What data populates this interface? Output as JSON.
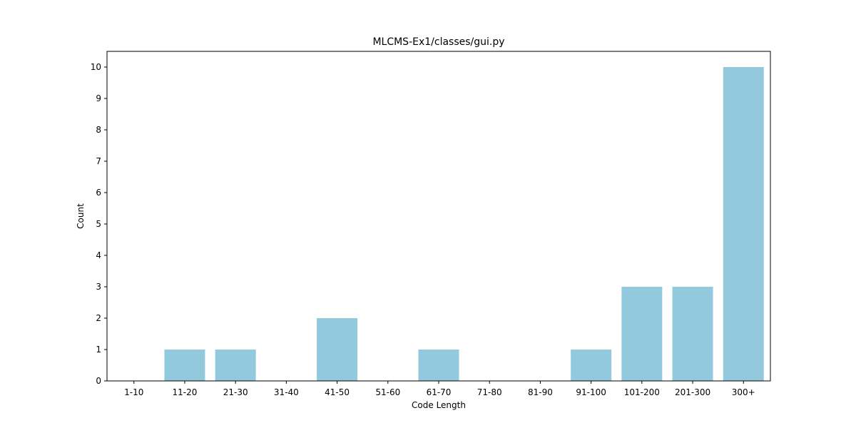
{
  "chart_data": {
    "type": "bar",
    "title": "MLCMS-Ex1/classes/gui.py",
    "xlabel": "Code Length",
    "ylabel": "Count",
    "categories": [
      "1-10",
      "11-20",
      "21-30",
      "31-40",
      "41-50",
      "51-60",
      "61-70",
      "71-80",
      "81-90",
      "91-100",
      "101-200",
      "201-300",
      "300+"
    ],
    "values": [
      0,
      1,
      1,
      0,
      2,
      0,
      1,
      0,
      0,
      1,
      3,
      3,
      10
    ],
    "ylim": [
      0,
      10.5
    ],
    "yticks": [
      0,
      1,
      2,
      3,
      4,
      5,
      6,
      7,
      8,
      9,
      10
    ],
    "bar_color": "#92c9dd",
    "grid": false,
    "legend": "none"
  }
}
